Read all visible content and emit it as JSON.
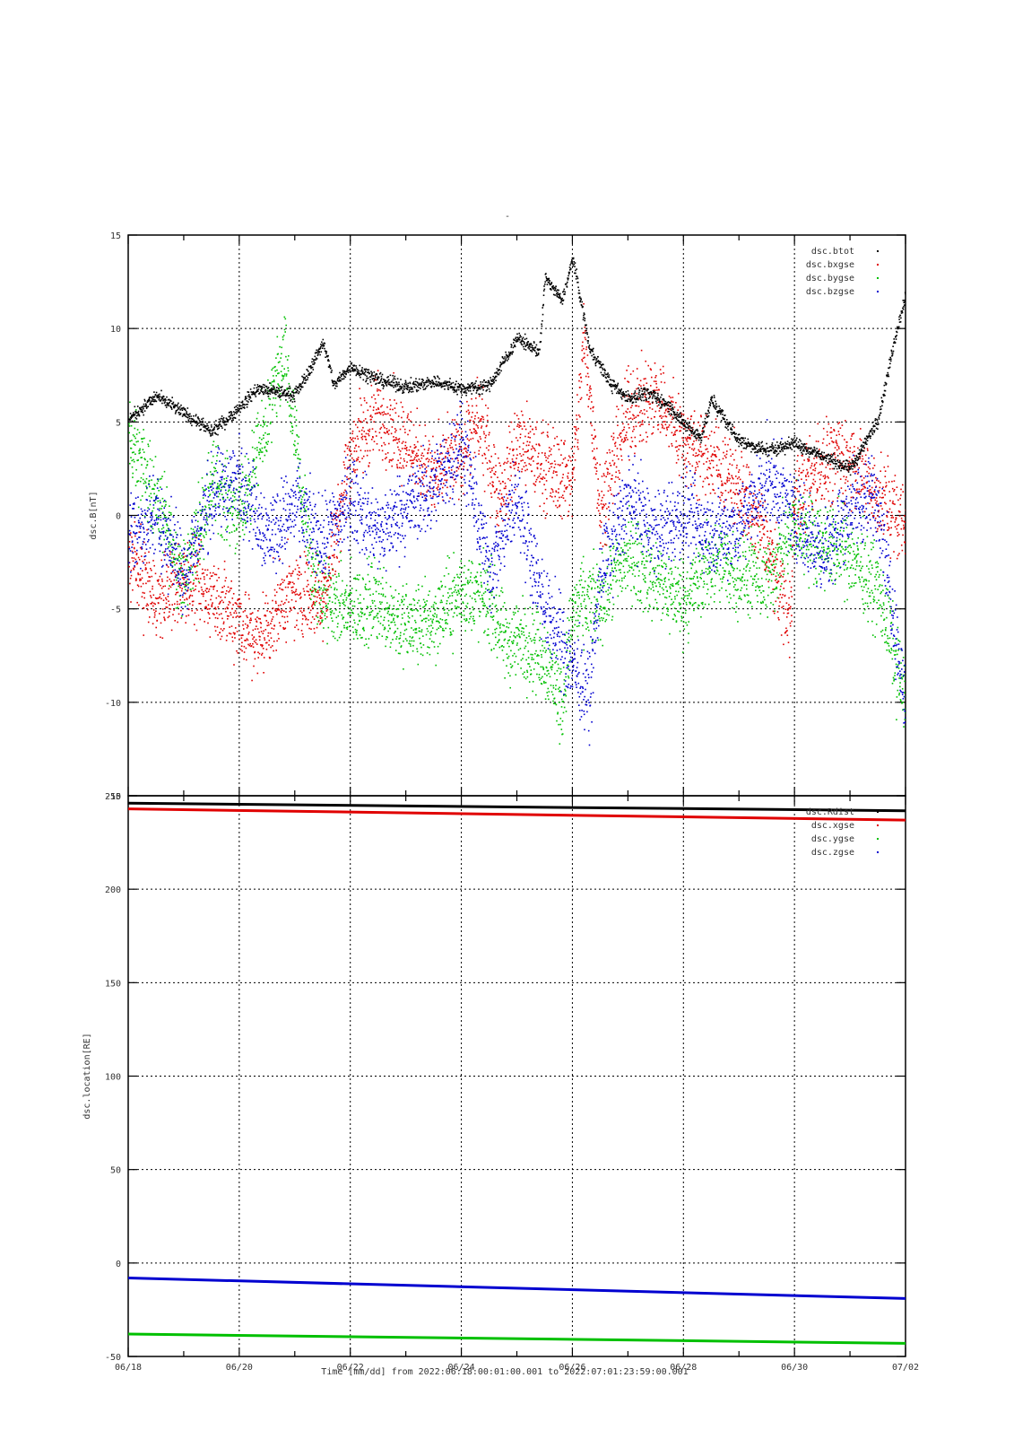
{
  "page_title": "-",
  "colors": {
    "black": "#000000",
    "red": "#e00000",
    "green": "#00c000",
    "blue": "#0000d0"
  },
  "chart_data": [
    {
      "type": "scatter",
      "ylabel": "dsc.B[nT]",
      "ylim": [
        -15,
        15
      ],
      "yticks": [
        15,
        10,
        5,
        0,
        -5,
        -10,
        -15
      ],
      "grid": true,
      "legend_position": "top-right",
      "series": [
        {
          "name": "dsc.btot",
          "color": "#000000",
          "x": [
            0,
            0.5,
            1,
            1.5,
            2,
            2.3,
            3,
            3.2,
            3.5,
            3.7,
            4,
            4.5,
            5,
            5.5,
            6,
            6.5,
            7,
            7.4,
            7.5,
            7.8,
            8,
            8.3,
            8.7,
            9,
            9.3,
            9.7,
            10,
            10.3,
            10.5,
            11,
            11.5,
            12,
            12.5,
            13,
            13.5,
            13.8,
            14
          ],
          "y": [
            5.2,
            6.4,
            5.5,
            4.5,
            5.8,
            6.8,
            6.5,
            7.5,
            9.3,
            7.0,
            8.0,
            7.3,
            6.9,
            7.2,
            6.8,
            7.0,
            9.5,
            8.8,
            12.8,
            11.5,
            13.8,
            9.0,
            7.0,
            6.3,
            6.6,
            6.0,
            4.9,
            4.2,
            6.2,
            4.0,
            3.5,
            3.9,
            3.2,
            2.5,
            5.2,
            9.5,
            12.0
          ]
        },
        {
          "name": "dsc.bxgse",
          "color": "#e00000",
          "x": [
            0,
            0.5,
            1,
            1.5,
            2,
            2.3,
            2.8,
            3.2,
            3.5,
            4,
            4.5,
            5,
            5.5,
            6,
            6.3,
            6.7,
            7,
            7.5,
            8,
            8.2,
            8.5,
            9,
            9.5,
            10,
            10.5,
            11,
            11.5,
            11.9,
            12,
            12.5,
            13,
            13.5,
            14
          ],
          "y": [
            -2.0,
            -4.5,
            -3.5,
            -4.2,
            -5.5,
            -6.8,
            -4.5,
            -4.0,
            -4.5,
            3.5,
            5.5,
            4.0,
            2.0,
            3.5,
            5.0,
            1.0,
            4.0,
            2.5,
            2.0,
            9.5,
            0.5,
            5.5,
            6.5,
            4.0,
            3.0,
            1.5,
            -1.5,
            -5.5,
            1.0,
            3.0,
            3.0,
            1.0,
            -0.5
          ]
        },
        {
          "name": "dsc.bygse",
          "color": "#00c000",
          "x": [
            0,
            0.5,
            1,
            1.5,
            2,
            2.3,
            2.8,
            3.3,
            3.5,
            4,
            4.5,
            5,
            5.5,
            6,
            6.5,
            6.8,
            7,
            7.5,
            7.8,
            8,
            8.5,
            9,
            9.5,
            10,
            10.5,
            11,
            11.5,
            12,
            12.5,
            13,
            13.5,
            13.8,
            14
          ],
          "y": [
            4.0,
            1.0,
            -3.5,
            2.0,
            0.0,
            3.0,
            8.5,
            -3.0,
            -4.5,
            -5.0,
            -4.5,
            -6.0,
            -5.5,
            -4.0,
            -4.5,
            -7.0,
            -6.5,
            -7.5,
            -10.0,
            -5.0,
            -4.5,
            -2.0,
            -3.5,
            -4.5,
            -2.5,
            -3.0,
            -3.5,
            -0.5,
            -1.5,
            -2.0,
            -4.0,
            -7.5,
            -10.0
          ]
        },
        {
          "name": "dsc.bzgse",
          "color": "#0000d0",
          "x": [
            0,
            0.5,
            1,
            1.5,
            2,
            2.5,
            3,
            3.5,
            4,
            4.5,
            5,
            5.5,
            6,
            6.2,
            6.5,
            7,
            7.5,
            8,
            8.3,
            8.5,
            9,
            9.5,
            10,
            10.5,
            11,
            11.5,
            12,
            12.5,
            13,
            13.5,
            14
          ],
          "y": [
            -1.0,
            0.0,
            -3.0,
            1.0,
            2.0,
            -1.0,
            0.5,
            -1.5,
            1.0,
            -1.0,
            0.5,
            1.5,
            4.0,
            1.0,
            -3.0,
            1.0,
            -5.0,
            -8.0,
            -9.5,
            -3.0,
            1.0,
            -1.0,
            0.0,
            -1.0,
            -0.5,
            2.0,
            0.0,
            -2.0,
            0.5,
            1.0,
            -10.5
          ]
        }
      ]
    },
    {
      "type": "line",
      "ylabel": "dsc.location[RE]",
      "ylim": [
        -50,
        250
      ],
      "yticks": [
        250,
        200,
        150,
        100,
        50,
        0,
        -50
      ],
      "grid": true,
      "legend_position": "top-right",
      "xlabel": "Time [mm/dd]  from 2022:06:18:00:01:00.001  to  2022:07:01:23:59:00.001",
      "xticks": [
        "06/18",
        "06/20",
        "06/22",
        "06/24",
        "06/26",
        "06/28",
        "06/30",
        "07/02"
      ],
      "series": [
        {
          "name": "dsc.Rdist",
          "color": "#000000",
          "x": [
            0,
            14
          ],
          "y": [
            246,
            242
          ]
        },
        {
          "name": "dsc.xgse",
          "color": "#e00000",
          "x": [
            0,
            14
          ],
          "y": [
            243,
            237
          ]
        },
        {
          "name": "dsc.ygse",
          "color": "#00c000",
          "x": [
            0,
            14
          ],
          "y": [
            -38,
            -43
          ]
        },
        {
          "name": "dsc.zgse",
          "color": "#0000d0",
          "x": [
            0,
            14
          ],
          "y": [
            -8,
            -19
          ]
        }
      ]
    }
  ]
}
